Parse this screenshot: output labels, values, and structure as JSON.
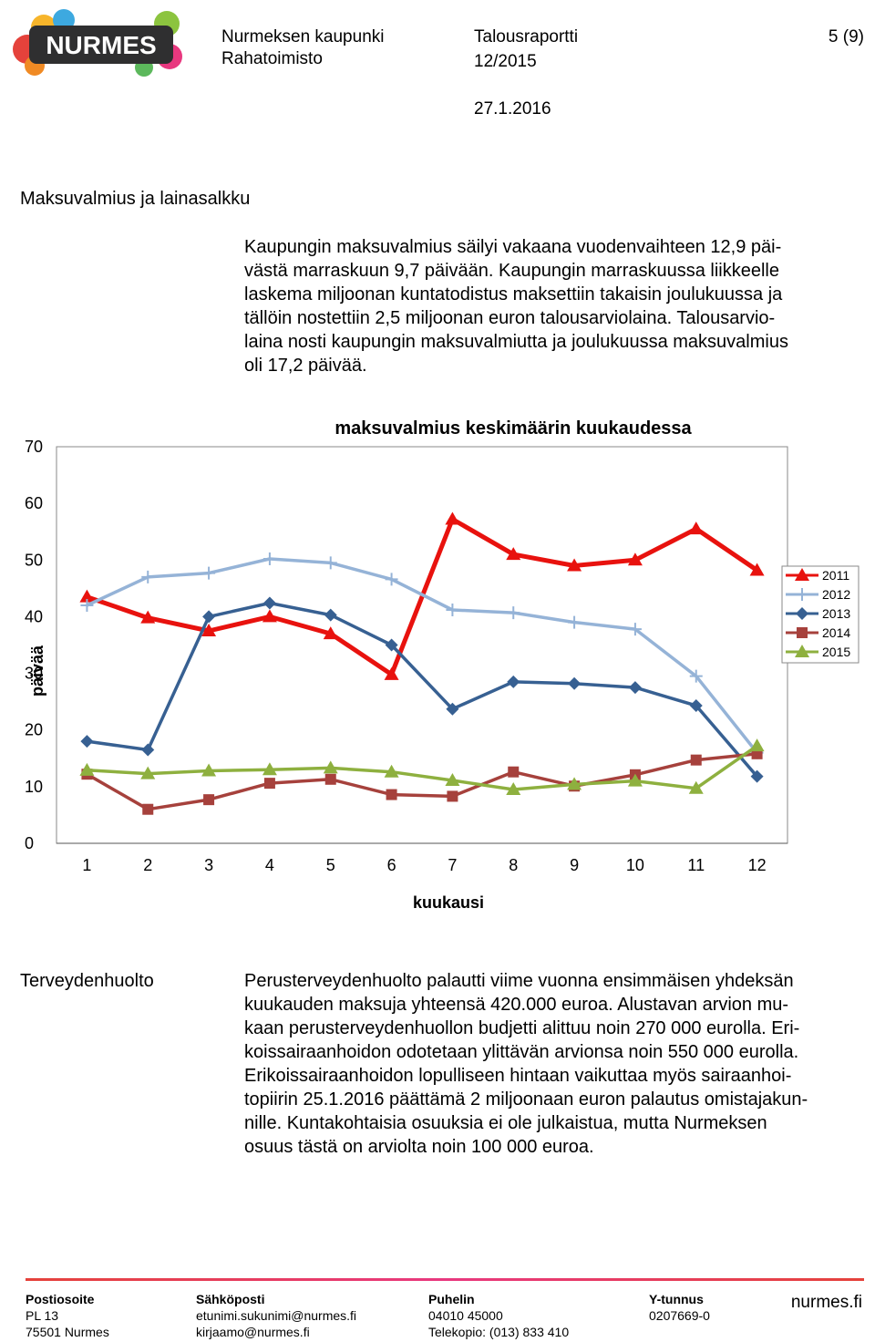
{
  "header": {
    "logo_text": "NURMES",
    "org_name": "Nurmeksen kaupunki",
    "org_unit": "Rahatoimisto",
    "report_title": "Talousraportti",
    "report_period": "12/2015",
    "report_date": "27.1.2016",
    "page_number": "5 (9)"
  },
  "sections": [
    {
      "title": "Maksuvalmius ja lainasalkku",
      "lines": [
        "Kaupungin maksuvalmius säilyi vakaana vuodenvaihteen 12,9 päi-",
        "västä marraskuun 9,7 päivään. Kaupungin marraskuussa liikkeelle",
        "laskema miljoonan kuntatodistus maksettiin takaisin joulukuussa ja",
        "tällöin nostettiin 2,5 miljoonan euron talousarviolaina. Talousarvio-",
        "laina nosti kaupungin maksuvalmiutta ja joulukuussa maksuvalmius",
        "oli 17,2 päivää."
      ]
    },
    {
      "title": "Terveydenhuolto",
      "lines": [
        "Perusterveydenhuolto palautti viime vuonna ensimmäisen yhdeksän",
        "kuukauden maksuja yhteensä 420.000 euroa. Alustavan arvion mu-",
        "kaan perusterveydenhuollon budjetti alittuu noin 270 000 eurolla. Eri-",
        "koissairaanhoidon odotetaan ylittävän arvionsa noin 550 000 eurolla.",
        "Erikoissairaanhoidon lopulliseen hintaan vaikuttaa myös sairaanhoi-",
        "topiirin 25.1.2016 päättämä 2 miljoonaan euron palautus omistajakun-",
        "nille. Kuntakohtaisia osuuksia ei ole julkaistua, mutta Nurmeksen",
        "osuus tästä on arviolta noin 100 000 euroa."
      ]
    }
  ],
  "chart_data": {
    "type": "line",
    "title": "maksuvalmius keskimäärin kuukaudessa",
    "xlabel": "kuukausi",
    "ylabel": "päivää",
    "categories": [
      "1",
      "2",
      "3",
      "4",
      "5",
      "6",
      "7",
      "8",
      "9",
      "10",
      "11",
      "12"
    ],
    "ylim": [
      0,
      70
    ],
    "yticks": [
      "0",
      "10",
      "20",
      "30",
      "40",
      "50",
      "60",
      "70"
    ],
    "legend_position": "right",
    "series": [
      {
        "name": "2011",
        "color": "#e8120e",
        "marker": "triangle",
        "values": [
          43.5,
          39.8,
          37.5,
          40,
          37,
          29.8,
          57.2,
          51,
          49,
          50,
          55.5,
          48.2
        ]
      },
      {
        "name": "2012",
        "color": "#95b3d7",
        "marker": "plus",
        "values": [
          42,
          47,
          47.7,
          50.2,
          49.5,
          46.6,
          41.2,
          40.7,
          39,
          37.8,
          29.5,
          16
        ]
      },
      {
        "name": "2013",
        "color": "#376092",
        "marker": "diamond",
        "values": [
          18,
          16.5,
          40,
          42.4,
          40.3,
          35,
          23.7,
          28.5,
          28.2,
          27.5,
          24.3,
          11.8
        ]
      },
      {
        "name": "2014",
        "color": "#a6413c",
        "marker": "square",
        "values": [
          12.2,
          6,
          7.7,
          10.6,
          11.3,
          8.6,
          8.3,
          12.6,
          10.1,
          12.1,
          14.7,
          15.8
        ]
      },
      {
        "name": "2015",
        "color": "#8eb03f",
        "marker": "triangle",
        "values": [
          12.9,
          12.3,
          12.8,
          13,
          13.3,
          12.6,
          11.1,
          9.5,
          10.4,
          11,
          9.7,
          17.2
        ]
      }
    ]
  },
  "footer": {
    "columns": [
      {
        "heading": "Postiosoite",
        "lines": [
          "PL 13",
          "75501 Nurmes"
        ]
      },
      {
        "heading": "Sähköposti",
        "lines": [
          "etunimi.sukunimi@nurmes.fi",
          "kirjaamo@nurmes.fi"
        ]
      },
      {
        "heading": "Puhelin",
        "lines": [
          "04010 45000",
          "Telekopio: (013) 833 410"
        ]
      },
      {
        "heading": "Y-tunnus",
        "lines": [
          "0207669-0"
        ]
      }
    ],
    "website": "nurmes.fi"
  }
}
